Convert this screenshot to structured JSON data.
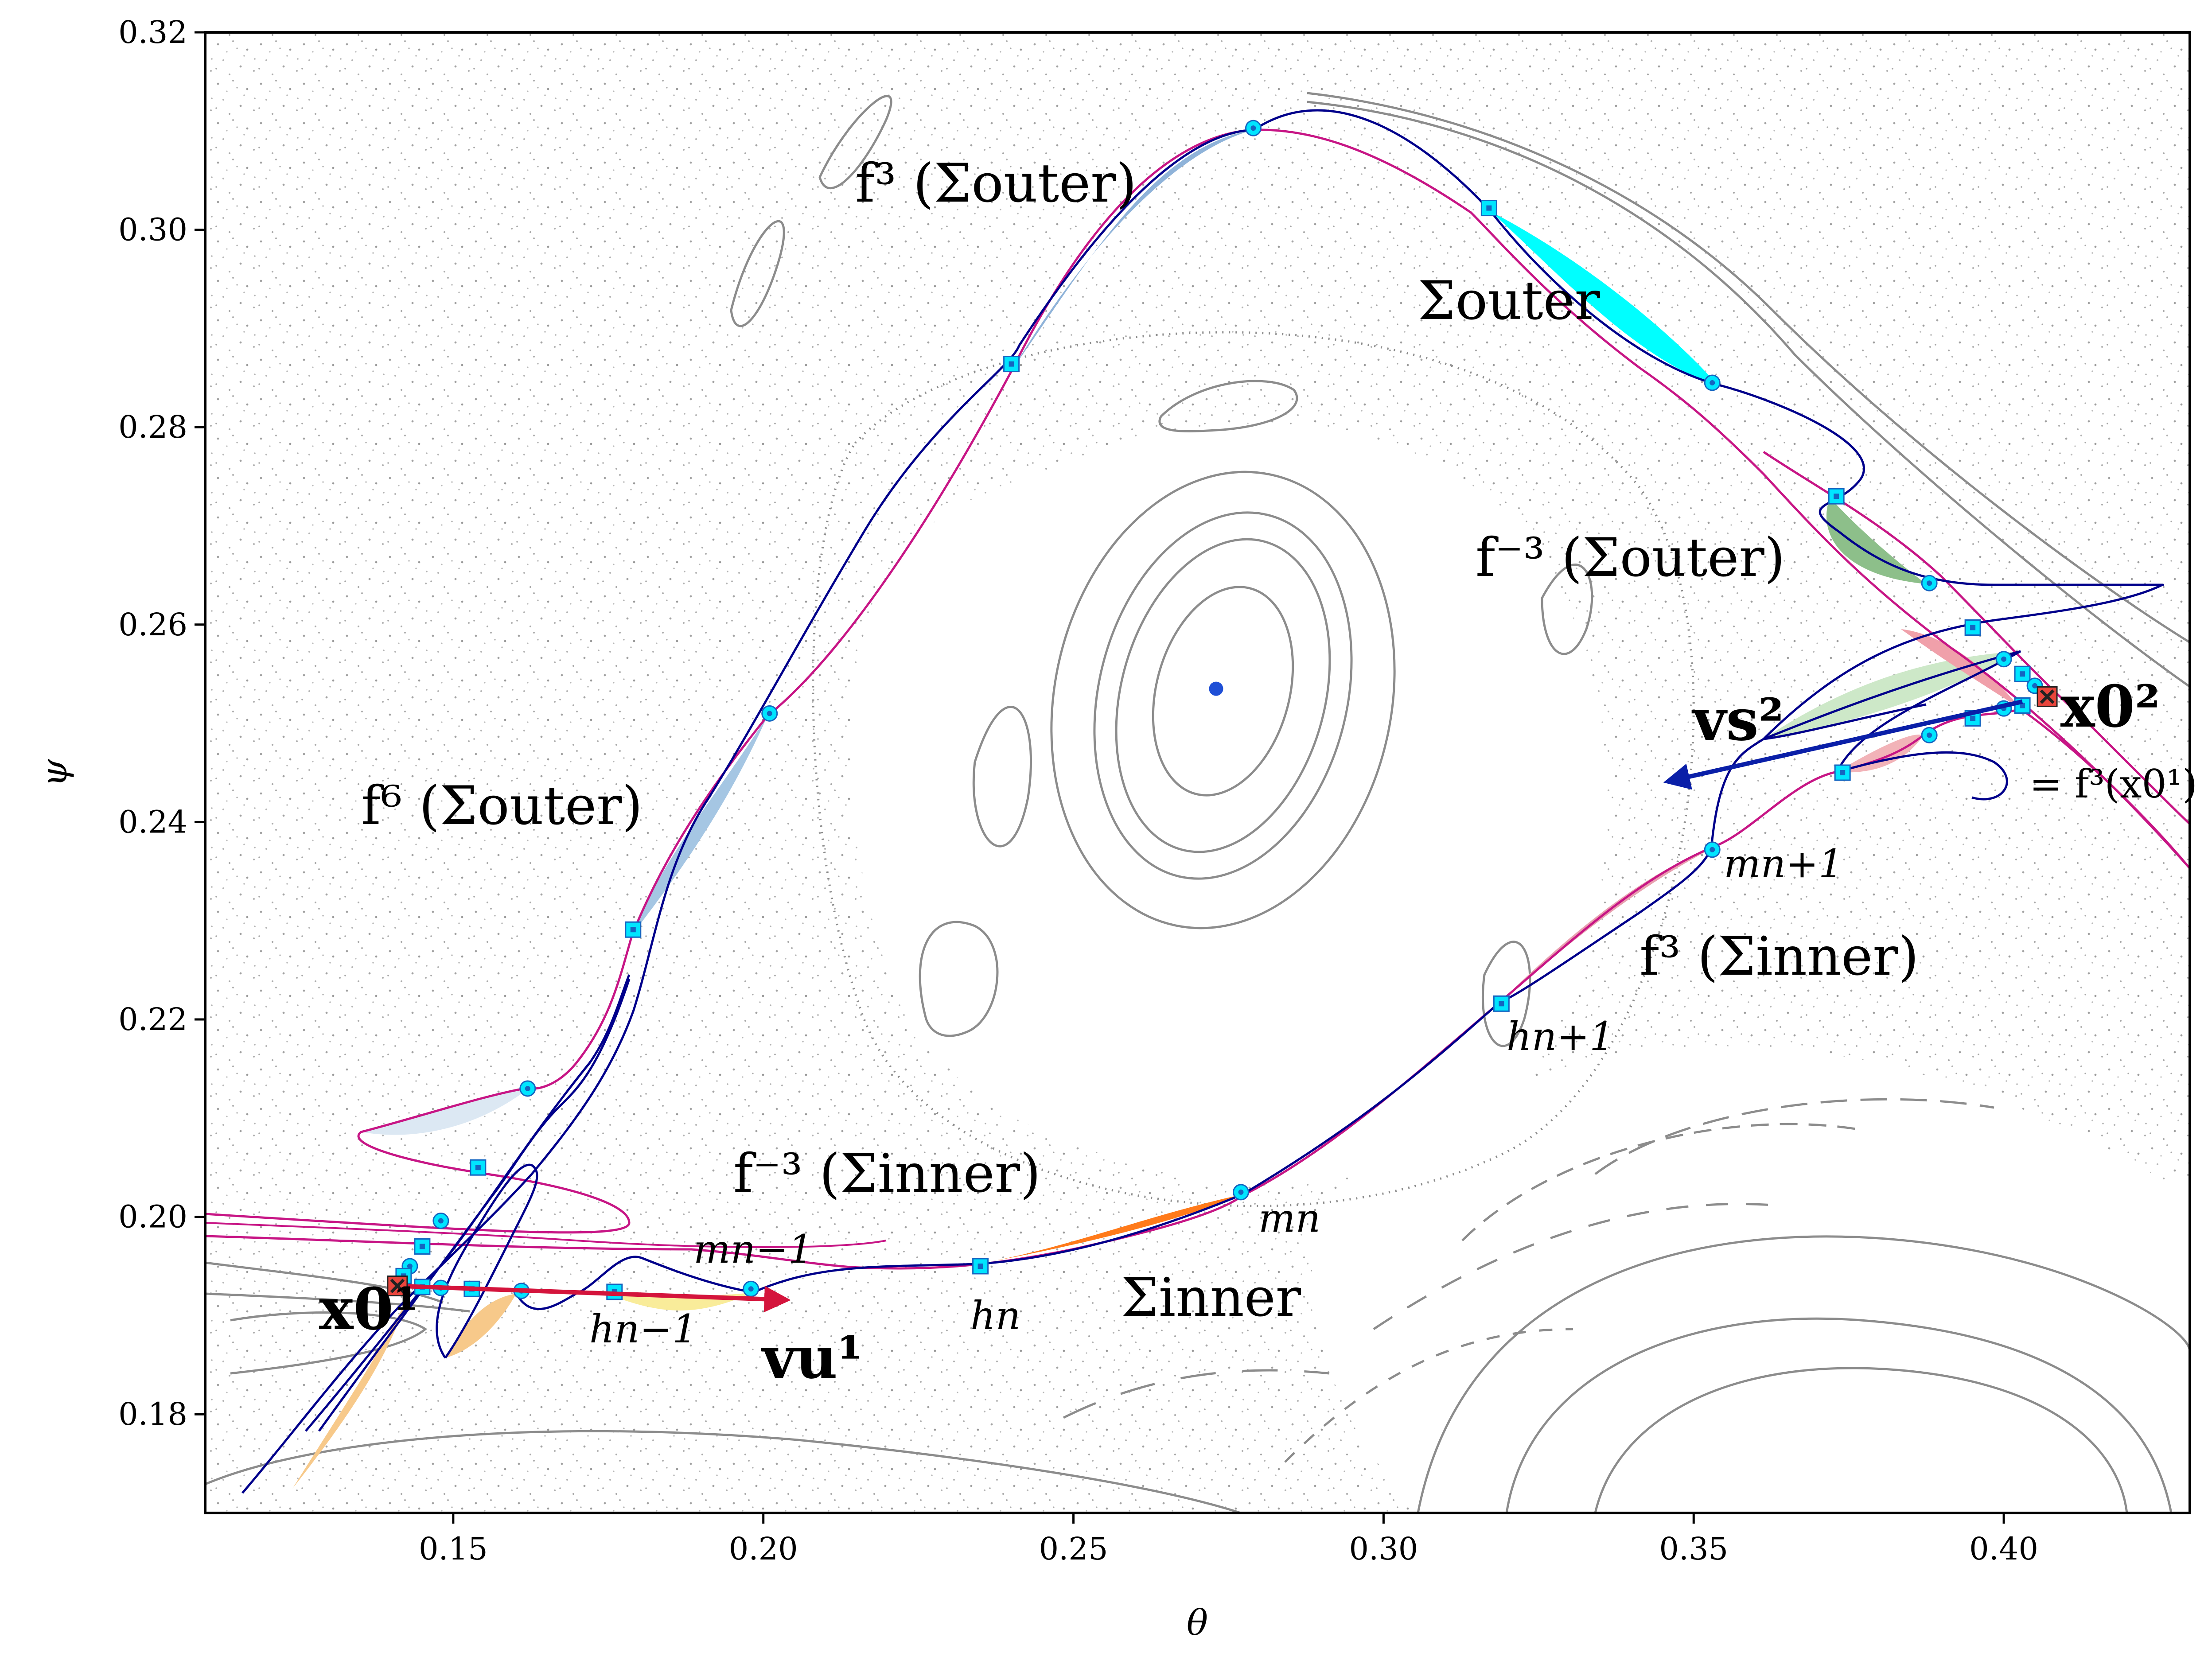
{
  "chart_data": {
    "type": "scatter",
    "xlabel": "θ",
    "ylabel": "ψ",
    "xlim": [
      0.11,
      0.43
    ],
    "ylim": [
      0.17,
      0.32
    ],
    "xticks": [
      "0.15",
      "0.20",
      "0.25",
      "0.30",
      "0.35",
      "0.40"
    ],
    "xtick_values": [
      0.15,
      0.2,
      0.25,
      0.3,
      0.35,
      0.4
    ],
    "yticks": [
      "0.18",
      "0.20",
      "0.22",
      "0.24",
      "0.26",
      "0.28",
      "0.30",
      "0.32"
    ],
    "ytick_values": [
      0.18,
      0.2,
      0.22,
      0.24,
      0.26,
      0.28,
      0.3,
      0.32
    ],
    "grid": false,
    "colors": {
      "unstable_manifold": "#00008b",
      "stable_manifold": "#c71585",
      "island_curves": "#8c8c8c",
      "marker_fill": "#00e5ff",
      "fixed_point_cross": "#e8453c",
      "center_point": "#1f4fd6",
      "vector_u": "#d4143c",
      "vector_s": "#0a1fa8"
    },
    "center_point": {
      "x": 0.273,
      "y": 0.2535
    },
    "fixed_points": [
      {
        "x": 0.141,
        "y": 0.193
      },
      {
        "x": 0.407,
        "y": 0.2527
      }
    ],
    "vectors": [
      {
        "from": [
          0.141,
          0.193
        ],
        "to": [
          0.203,
          0.1916
        ]
      },
      {
        "from": [
          0.403,
          0.2522
        ],
        "to": [
          0.3465,
          0.2442
        ]
      }
    ],
    "intersection_points": [
      {
        "x": 0.279,
        "y": 0.3103,
        "shape": "circle"
      },
      {
        "x": 0.317,
        "y": 0.3022,
        "shape": "square"
      },
      {
        "x": 0.24,
        "y": 0.2864,
        "shape": "square"
      },
      {
        "x": 0.353,
        "y": 0.2845,
        "shape": "circle"
      },
      {
        "x": 0.373,
        "y": 0.273,
        "shape": "square"
      },
      {
        "x": 0.388,
        "y": 0.2642,
        "shape": "circle"
      },
      {
        "x": 0.395,
        "y": 0.2597,
        "shape": "square"
      },
      {
        "x": 0.4,
        "y": 0.2565,
        "shape": "circle"
      },
      {
        "x": 0.403,
        "y": 0.255,
        "shape": "square"
      },
      {
        "x": 0.405,
        "y": 0.2538,
        "shape": "circle"
      },
      {
        "x": 0.403,
        "y": 0.2518,
        "shape": "square"
      },
      {
        "x": 0.4,
        "y": 0.2515,
        "shape": "circle"
      },
      {
        "x": 0.395,
        "y": 0.2505,
        "shape": "square"
      },
      {
        "x": 0.388,
        "y": 0.2488,
        "shape": "circle"
      },
      {
        "x": 0.374,
        "y": 0.245,
        "shape": "square"
      },
      {
        "x": 0.353,
        "y": 0.2372,
        "shape": "circle"
      },
      {
        "x": 0.319,
        "y": 0.2216,
        "shape": "square"
      },
      {
        "x": 0.277,
        "y": 0.2025,
        "shape": "circle"
      },
      {
        "x": 0.235,
        "y": 0.195,
        "shape": "square"
      },
      {
        "x": 0.198,
        "y": 0.1927,
        "shape": "circle"
      },
      {
        "x": 0.176,
        "y": 0.1924,
        "shape": "square"
      },
      {
        "x": 0.161,
        "y": 0.1925,
        "shape": "circle"
      },
      {
        "x": 0.153,
        "y": 0.1927,
        "shape": "square"
      },
      {
        "x": 0.148,
        "y": 0.1928,
        "shape": "circle"
      },
      {
        "x": 0.145,
        "y": 0.1929,
        "shape": "square"
      },
      {
        "x": 0.201,
        "y": 0.251,
        "shape": "circle"
      },
      {
        "x": 0.179,
        "y": 0.2291,
        "shape": "square"
      },
      {
        "x": 0.162,
        "y": 0.213,
        "shape": "circle"
      },
      {
        "x": 0.154,
        "y": 0.205,
        "shape": "square"
      },
      {
        "x": 0.148,
        "y": 0.1996,
        "shape": "circle"
      },
      {
        "x": 0.145,
        "y": 0.197,
        "shape": "square"
      },
      {
        "x": 0.143,
        "y": 0.195,
        "shape": "circle"
      },
      {
        "x": 0.142,
        "y": 0.194,
        "shape": "square"
      }
    ],
    "annotations": {
      "f3_outer": "f³ (Σouter)",
      "sigma_outer": "Σouter",
      "fm3_outer": "f⁻³ (Σouter)",
      "f6_outer": "f⁶ (Σouter)",
      "fm3_inner": "f⁻³ (Σinner)",
      "f3_inner": "f³ (Σinner)",
      "sigma_inner": "Σinner",
      "m_n": "mn",
      "h_n": "hn",
      "m_n1": "mn+1",
      "h_n1": "hn+1",
      "m_nm1": "mn−1",
      "h_nm1": "hn−1",
      "x01_label": "x0¹",
      "x02_label": "x0²",
      "x02_eq": "= f³(x0¹)",
      "vu_label": "vu¹",
      "vs_label": "vs²"
    }
  }
}
